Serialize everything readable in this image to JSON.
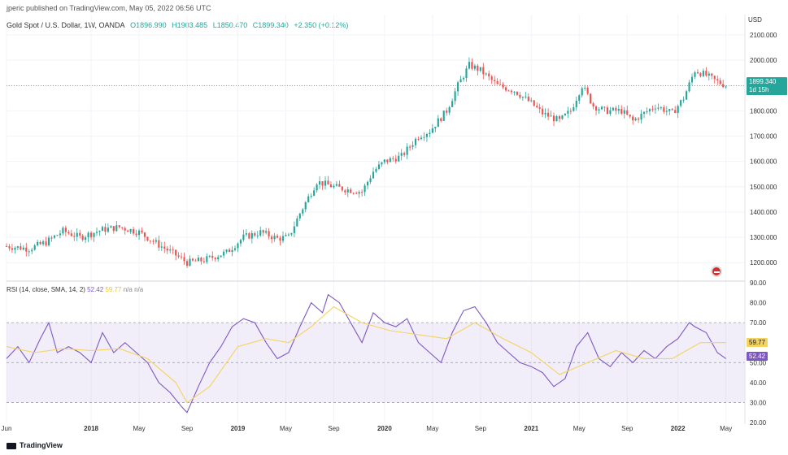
{
  "header": {
    "published": "jperic published on TradingView.com, May 05, 2022 06:56 UTC"
  },
  "symbol": {
    "name": "Gold Spot / U.S. Dollar, 1W, OANDA",
    "open": "O1896.990",
    "high": "H1903.485",
    "low": "L1850.470",
    "close": "C1899.340",
    "change": "+2.350 (+0.12%)"
  },
  "price_axis": {
    "currency": "USD",
    "current_price": "1899.340",
    "countdown": "1d 15h",
    "accent_color": "#26a69a"
  },
  "rsi_legend": {
    "label": "RSI (14, close, SMA, 14, 2)",
    "rsi_value": "52.42",
    "sma_value": "59.77",
    "na1": "n/a",
    "na2": "n/a"
  },
  "rsi_badges": {
    "sma": "59.77",
    "rsi": "52.42"
  },
  "footer": {
    "brand": "TradingView"
  },
  "chart_data": [
    {
      "type": "candlestick",
      "title": "Gold Spot / U.S. Dollar, 1W, OANDA",
      "ylim": [
        1130,
        2180
      ],
      "y_ticks": [
        1200,
        1300,
        1400,
        1500,
        1600,
        1700,
        1800,
        1900,
        2000,
        2100
      ],
      "y_tick_labels": [
        "1200.000",
        "1300.000",
        "1400.000",
        "1500.000",
        "1600.000",
        "1700.000",
        "1800.000",
        "1900.000",
        "2000.000",
        "2100.000"
      ],
      "x_tick_labels": [
        "Jun",
        "2018",
        "May",
        "Sep",
        "2019",
        "May",
        "Sep",
        "2020",
        "May",
        "Sep",
        "2021",
        "May",
        "Sep",
        "2022",
        "May"
      ],
      "x_tick_weeks": [
        0,
        30,
        47,
        64,
        82,
        99,
        116,
        134,
        151,
        168,
        186,
        203,
        220,
        238,
        255
      ],
      "trend_points": [
        [
          0,
          1265
        ],
        [
          8,
          1255
        ],
        [
          14,
          1280
        ],
        [
          20,
          1325
        ],
        [
          26,
          1300
        ],
        [
          34,
          1330
        ],
        [
          40,
          1340
        ],
        [
          47,
          1320
        ],
        [
          54,
          1270
        ],
        [
          60,
          1230
        ],
        [
          64,
          1200
        ],
        [
          70,
          1210
        ],
        [
          78,
          1240
        ],
        [
          84,
          1300
        ],
        [
          90,
          1320
        ],
        [
          96,
          1295
        ],
        [
          100,
          1300
        ],
        [
          104,
          1395
        ],
        [
          110,
          1520
        ],
        [
          116,
          1500
        ],
        [
          120,
          1490
        ],
        [
          126,
          1480
        ],
        [
          130,
          1560
        ],
        [
          134,
          1600
        ],
        [
          140,
          1620
        ],
        [
          146,
          1700
        ],
        [
          150,
          1720
        ],
        [
          156,
          1800
        ],
        [
          160,
          1900
        ],
        [
          164,
          1980
        ],
        [
          168,
          1960
        ],
        [
          174,
          1900
        ],
        [
          180,
          1880
        ],
        [
          186,
          1830
        ],
        [
          190,
          1790
        ],
        [
          196,
          1760
        ],
        [
          200,
          1800
        ],
        [
          204,
          1900
        ],
        [
          208,
          1820
        ],
        [
          212,
          1800
        ],
        [
          218,
          1800
        ],
        [
          222,
          1760
        ],
        [
          226,
          1790
        ],
        [
          230,
          1820
        ],
        [
          236,
          1790
        ],
        [
          240,
          1850
        ],
        [
          244,
          1960
        ],
        [
          248,
          1940
        ],
        [
          251,
          1920
        ],
        [
          255,
          1900
        ]
      ],
      "last_price": 1899.34,
      "colors": {
        "up": "#26a69a",
        "down": "#ef5350"
      }
    },
    {
      "type": "line",
      "title": "RSI (14, close, SMA, 14, 2)",
      "ylim": [
        20,
        90
      ],
      "y_ticks": [
        20,
        30,
        40,
        50,
        60,
        70,
        80,
        90
      ],
      "y_tick_labels": [
        "20.00",
        "30.00",
        "40.00",
        "50.00",
        "60.00",
        "70.00",
        "80.00",
        "90.00"
      ],
      "bands": {
        "upper": 70,
        "lower": 30,
        "middle": 50
      },
      "series": [
        {
          "name": "RSI",
          "color": "#7e57c2",
          "points": [
            [
              0,
              52
            ],
            [
              4,
              58
            ],
            [
              8,
              50
            ],
            [
              12,
              62
            ],
            [
              15,
              70
            ],
            [
              18,
              55
            ],
            [
              22,
              58
            ],
            [
              26,
              55
            ],
            [
              30,
              50
            ],
            [
              34,
              65
            ],
            [
              38,
              55
            ],
            [
              42,
              60
            ],
            [
              46,
              55
            ],
            [
              50,
              50
            ],
            [
              54,
              40
            ],
            [
              58,
              35
            ],
            [
              62,
              28
            ],
            [
              64,
              25
            ],
            [
              68,
              38
            ],
            [
              72,
              50
            ],
            [
              76,
              58
            ],
            [
              80,
              68
            ],
            [
              84,
              72
            ],
            [
              88,
              70
            ],
            [
              92,
              60
            ],
            [
              96,
              52
            ],
            [
              100,
              55
            ],
            [
              104,
              68
            ],
            [
              108,
              80
            ],
            [
              112,
              75
            ],
            [
              114,
              84
            ],
            [
              118,
              80
            ],
            [
              122,
              70
            ],
            [
              126,
              60
            ],
            [
              130,
              75
            ],
            [
              134,
              70
            ],
            [
              138,
              68
            ],
            [
              142,
              72
            ],
            [
              146,
              60
            ],
            [
              150,
              55
            ],
            [
              154,
              50
            ],
            [
              158,
              65
            ],
            [
              162,
              76
            ],
            [
              166,
              78
            ],
            [
              170,
              70
            ],
            [
              174,
              60
            ],
            [
              178,
              55
            ],
            [
              182,
              50
            ],
            [
              186,
              48
            ],
            [
              190,
              45
            ],
            [
              194,
              38
            ],
            [
              198,
              42
            ],
            [
              202,
              58
            ],
            [
              206,
              65
            ],
            [
              210,
              52
            ],
            [
              214,
              48
            ],
            [
              218,
              55
            ],
            [
              222,
              50
            ],
            [
              226,
              56
            ],
            [
              230,
              52
            ],
            [
              234,
              58
            ],
            [
              238,
              62
            ],
            [
              242,
              70
            ],
            [
              244,
              68
            ],
            [
              248,
              65
            ],
            [
              252,
              55
            ],
            [
              255,
              52
            ]
          ]
        },
        {
          "name": "SMA",
          "color": "#f4d35e",
          "points": [
            [
              0,
              58
            ],
            [
              10,
              55
            ],
            [
              20,
              57
            ],
            [
              30,
              56
            ],
            [
              40,
              57
            ],
            [
              50,
              52
            ],
            [
              60,
              40
            ],
            [
              64,
              30
            ],
            [
              72,
              38
            ],
            [
              82,
              58
            ],
            [
              92,
              62
            ],
            [
              100,
              60
            ],
            [
              108,
              68
            ],
            [
              116,
              78
            ],
            [
              126,
              70
            ],
            [
              136,
              66
            ],
            [
              146,
              64
            ],
            [
              156,
              62
            ],
            [
              166,
              70
            ],
            [
              176,
              62
            ],
            [
              186,
              55
            ],
            [
              196,
              44
            ],
            [
              206,
              50
            ],
            [
              216,
              56
            ],
            [
              226,
              52
            ],
            [
              236,
              52
            ],
            [
              246,
              60
            ],
            [
              255,
              60
            ]
          ]
        }
      ]
    }
  ]
}
